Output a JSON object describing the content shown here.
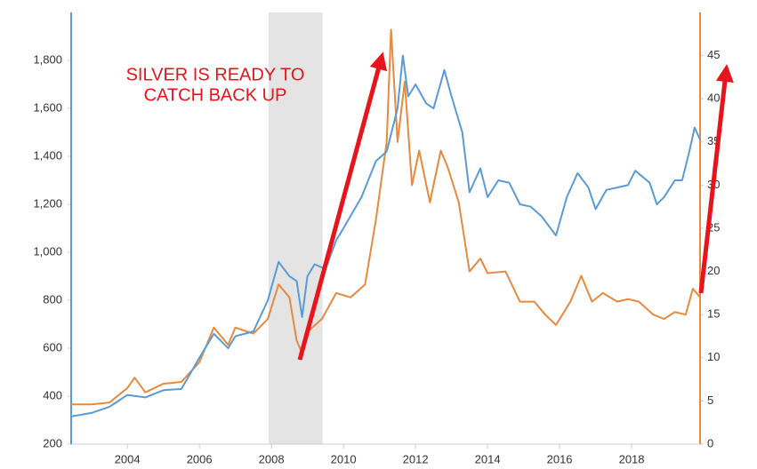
{
  "chart_data": {
    "type": "line",
    "annotations": [
      "SILVER IS READY TO",
      "CATCH BACK UP"
    ],
    "xlim": [
      2002.44,
      2019.9
    ],
    "xticks": [
      2004,
      2006,
      2008,
      2010,
      2012,
      2014,
      2016,
      2018
    ],
    "ylim": [
      200,
      2000
    ],
    "yticks": [
      200,
      400,
      600,
      800,
      {
        "value": 1000,
        "label": "1,000"
      },
      {
        "value": 1200,
        "label": "1,200"
      },
      {
        "value": 1400,
        "label": "1,400"
      },
      {
        "value": 1600,
        "label": "1,600"
      },
      {
        "value": 1800,
        "label": "1,800"
      }
    ],
    "y2lim": [
      0,
      50
    ],
    "y2ticks": [
      0,
      5,
      10,
      15,
      20,
      25,
      30,
      35,
      40,
      45
    ],
    "shade": [
      2007.92,
      2009.42
    ],
    "shade_color": "#e4e4e4",
    "series": [
      {
        "color": "#5b9bd5",
        "x": [
          2002.44,
          2003,
          2003.5,
          2004,
          2004.5,
          2005,
          2005.5,
          2006,
          2006.4,
          2006.8,
          2007,
          2007.5,
          2007.9,
          2008.2,
          2008.5,
          2008.7,
          2008.85,
          2009,
          2009.2,
          2009.5,
          2009.8,
          2010,
          2010.5,
          2010.9,
          2011.2,
          2011.5,
          2011.65,
          2011.8,
          2012,
          2012.3,
          2012.5,
          2012.8,
          2013,
          2013.3,
          2013.5,
          2013.8,
          2014,
          2014.3,
          2014.6,
          2014.9,
          2015.2,
          2015.5,
          2015.9,
          2016.2,
          2016.5,
          2016.8,
          2017,
          2017.3,
          2017.6,
          2017.9,
          2018.1,
          2018.5,
          2018.7,
          2018.9,
          2019.2,
          2019.4,
          2019.6,
          2019.75,
          2019.9
        ],
        "values": [
          315,
          330,
          355,
          405,
          395,
          425,
          430,
          560,
          660,
          600,
          650,
          670,
          800,
          960,
          900,
          880,
          730,
          900,
          950,
          930,
          1050,
          1100,
          1230,
          1380,
          1420,
          1600,
          1820,
          1650,
          1700,
          1620,
          1600,
          1760,
          1650,
          1500,
          1250,
          1350,
          1230,
          1300,
          1290,
          1200,
          1190,
          1150,
          1070,
          1230,
          1330,
          1270,
          1180,
          1260,
          1270,
          1280,
          1340,
          1290,
          1200,
          1230,
          1300,
          1300,
          1420,
          1520,
          1470
        ]
      },
      {
        "color": "#e8893e",
        "axis": "y2",
        "x": [
          2002.44,
          2003,
          2003.5,
          2004,
          2004.2,
          2004.5,
          2005,
          2005.5,
          2006,
          2006.4,
          2006.8,
          2007,
          2007.5,
          2007.9,
          2008.2,
          2008.5,
          2008.7,
          2008.85,
          2009,
          2009.4,
          2009.8,
          2010.2,
          2010.6,
          2010.9,
          2011.2,
          2011.32,
          2011.5,
          2011.7,
          2011.9,
          2012.1,
          2012.4,
          2012.7,
          2012.9,
          2013.2,
          2013.5,
          2013.8,
          2014,
          2014.5,
          2014.9,
          2015.3,
          2015.6,
          2015.9,
          2016.3,
          2016.6,
          2016.9,
          2017.2,
          2017.6,
          2017.9,
          2018.2,
          2018.6,
          2018.9,
          2019.2,
          2019.5,
          2019.7,
          2019.9
        ],
        "values": [
          4.6,
          4.6,
          4.8,
          6.5,
          7.7,
          6.0,
          7.0,
          7.2,
          9.5,
          13.5,
          11.5,
          13.5,
          12.8,
          14.5,
          18.5,
          17,
          12,
          10.5,
          13,
          14.5,
          17.5,
          17,
          18.5,
          26,
          35,
          48,
          35,
          42,
          30,
          34,
          28,
          34,
          32,
          28,
          20,
          21.5,
          19.8,
          20,
          16.5,
          16.5,
          15,
          13.8,
          16.5,
          19.5,
          16.5,
          17.5,
          16.5,
          16.8,
          16.5,
          15,
          14.5,
          15.3,
          15,
          18,
          17
        ]
      }
    ]
  }
}
